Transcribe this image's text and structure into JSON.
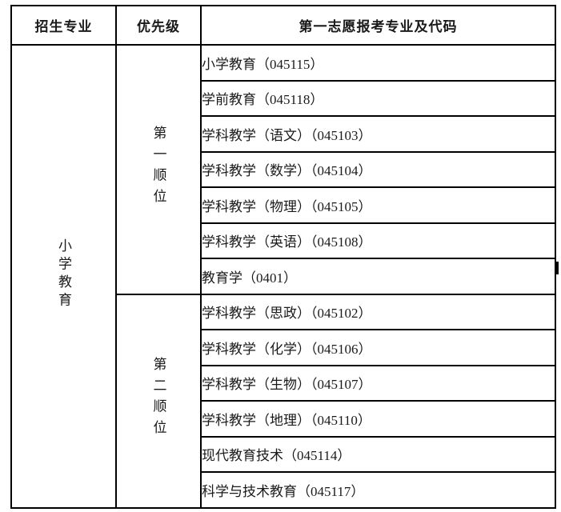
{
  "colors": {
    "background": "#ffffff",
    "border": "#000000",
    "text": "#1a1a1a"
  },
  "table": {
    "headers": [
      "招生专业",
      "优先级",
      "第一志愿报考专业及代码"
    ],
    "major": "小学教育",
    "groups": [
      {
        "priority": "第一顺位",
        "items": [
          "小学教育（045115）",
          "学前教育（045118）",
          "学科教学（语文）（045103）",
          "学科教学（数学）（045104）",
          "学科教学（物理）（045105）",
          "学科教学（英语）（045108）",
          "教育学（0401）"
        ]
      },
      {
        "priority": "第二顺位",
        "items": [
          "学科教学（思政）（045102）",
          "学科教学（化学）（045106）",
          "学科教学（生物）（045107）",
          "学科教学（地理）（045110）",
          "现代教育技术（045114）",
          "科学与技术教育（045117）"
        ]
      }
    ]
  }
}
